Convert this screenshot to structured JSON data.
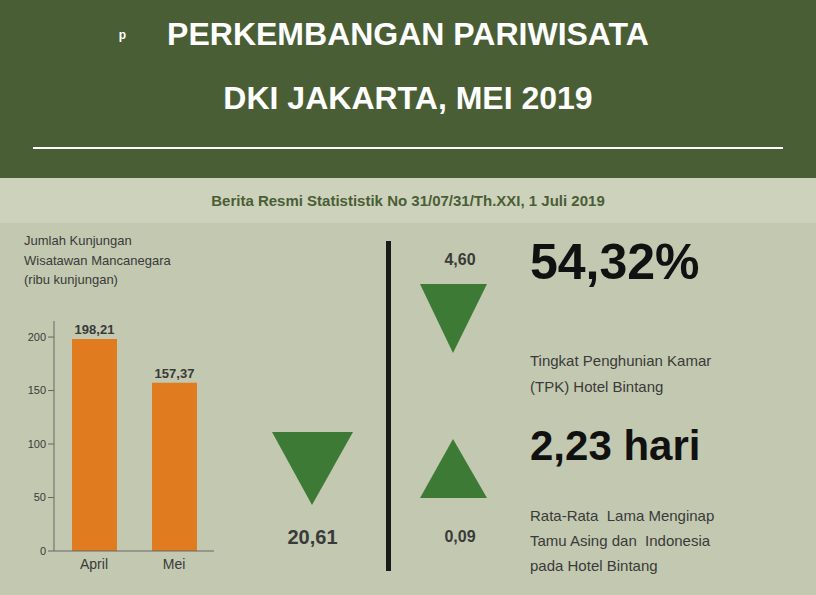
{
  "chart_data": {
    "type": "bar",
    "title": "PERKEMBANGAN PARIWISATA\nDKI JAKARTA, MEI 2019",
    "subtitle": "Berita Resmi Statististik No 31/07/31/Th.XXI, 1 Juli 2019",
    "ylabel": "Jumlah Kunjungan\nWisatawan Mancanegara\n(ribu kunjungan)",
    "categories": [
      "April",
      "Mei"
    ],
    "values": [
      198.21,
      157.37
    ],
    "value_labels": [
      "198,21",
      "157,37"
    ],
    "data_labels": true,
    "color": "#e07b20",
    "ylim": [
      0,
      215
    ],
    "yticks": [
      0,
      50,
      100,
      150,
      200
    ],
    "grid": false,
    "annotations": [
      "p",
      "20,61",
      "4,60",
      "0,09",
      "54,32%",
      "Tingkat Penghunian Kamar",
      "(TPK) Hotel Bintang",
      "2,23 hari",
      "Rata-Rata  Lama Menginap",
      "Tamu Asing dan  Indonesia",
      "pada Hotel Bintang"
    ]
  }
}
